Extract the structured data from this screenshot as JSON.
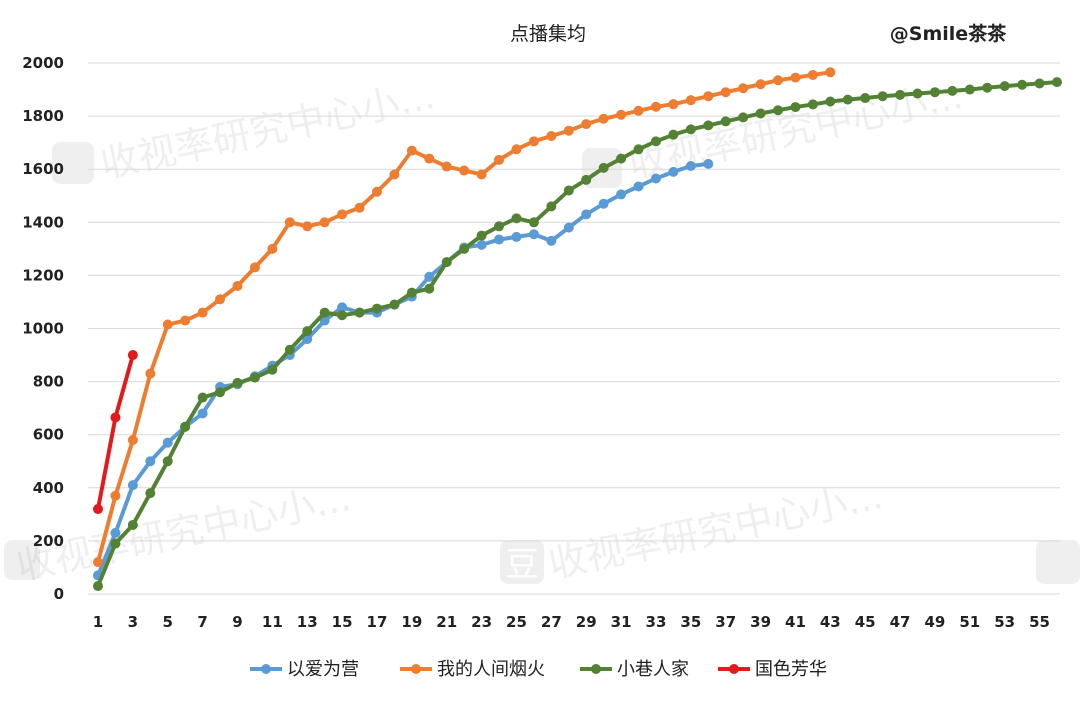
{
  "chart_data": {
    "type": "line",
    "title": "点播集均",
    "author": "@Smile茶茶",
    "watermark": "收视率研究中心小...",
    "watermark_icon": "豆",
    "ylim": [
      0,
      2000
    ],
    "y_ticks": [
      "0",
      "200",
      "400",
      "600",
      "800",
      "1000",
      "1200",
      "1400",
      "1600",
      "1800",
      "2000"
    ],
    "xlim": [
      1,
      56
    ],
    "x_ticks": [
      "1",
      "3",
      "5",
      "7",
      "9",
      "11",
      "13",
      "15",
      "17",
      "19",
      "21",
      "23",
      "25",
      "27",
      "29",
      "31",
      "33",
      "35",
      "37",
      "39",
      "41",
      "43",
      "45",
      "47",
      "49",
      "51",
      "53",
      "55"
    ],
    "grid": true,
    "legend_position": "bottom",
    "series": [
      {
        "name": "以爱为营",
        "color": "#5b9bd5",
        "values": [
          70,
          230,
          410,
          500,
          570,
          630,
          680,
          780,
          790,
          820,
          860,
          900,
          960,
          1030,
          1080,
          1060,
          1060,
          1090,
          1120,
          1195,
          1250,
          1305,
          1315,
          1335,
          1345,
          1355,
          1330,
          1380,
          1430,
          1470,
          1505,
          1535,
          1565,
          1590,
          1612,
          1620
        ]
      },
      {
        "name": "我的人间烟火",
        "color": "#ed7d31",
        "values": [
          120,
          370,
          580,
          830,
          1015,
          1030,
          1060,
          1110,
          1160,
          1230,
          1300,
          1400,
          1385,
          1400,
          1430,
          1455,
          1515,
          1580,
          1670,
          1640,
          1610,
          1595,
          1580,
          1635,
          1675,
          1705,
          1725,
          1745,
          1770,
          1790,
          1805,
          1820,
          1835,
          1845,
          1860,
          1875,
          1890,
          1905,
          1920,
          1935,
          1945,
          1955,
          1965
        ]
      },
      {
        "name": "小巷人家",
        "color": "#548235",
        "values": [
          30,
          190,
          260,
          380,
          500,
          630,
          740,
          760,
          795,
          815,
          845,
          920,
          990,
          1060,
          1050,
          1060,
          1075,
          1090,
          1135,
          1150,
          1250,
          1300,
          1350,
          1385,
          1415,
          1400,
          1460,
          1520,
          1560,
          1605,
          1640,
          1675,
          1705,
          1730,
          1750,
          1765,
          1780,
          1795,
          1810,
          1822,
          1834,
          1844,
          1855,
          1862,
          1868,
          1875,
          1880,
          1885,
          1890,
          1895,
          1900,
          1907,
          1913,
          1918,
          1923,
          1928
        ]
      },
      {
        "name": "国色芳华",
        "color": "#e31a1c",
        "values": [
          320,
          665,
          900
        ]
      }
    ]
  }
}
